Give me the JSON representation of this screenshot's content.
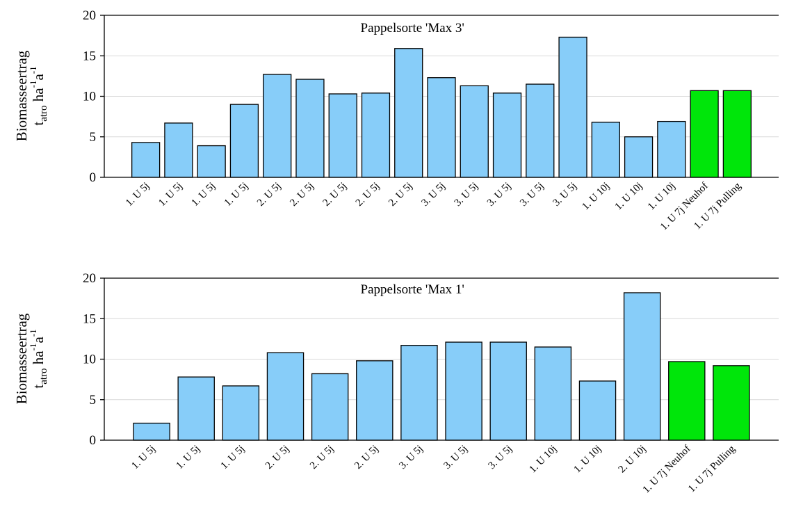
{
  "colors": {
    "standard": "#87cdf9",
    "highlight": "#00e60a",
    "stroke": "#000000",
    "grid": "#d9d9d9"
  },
  "chart_data": [
    {
      "type": "bar",
      "title": "Pappelsorte 'Max 3'",
      "ylabel": "Biomasseertrag",
      "ylabel_line2": {
        "t": "t",
        "sub": "atro",
        "ha": " ha",
        "sup1": "-1",
        "a": "a",
        "sup2": "-1"
      },
      "ylim": [
        0,
        20
      ],
      "yticks": [
        0,
        5,
        10,
        15,
        20
      ],
      "grid": true,
      "categories": [
        "1. U 5j",
        "1. U 5j",
        "1. U 5j",
        "1. U 5j",
        "2. U 5j",
        "2. U 5j",
        "2. U 5j",
        "2. U 5j",
        "2. U 5j",
        "3. U 5j",
        "3. U 5j",
        "3. U 5j",
        "3. U 5j",
        "3. U 5j",
        "1. U 10j",
        "1. U 10j",
        "1. U 10j",
        "1. U 7j Neuhof",
        "1. U 7j Pulling"
      ],
      "values": [
        4.3,
        6.7,
        3.9,
        9.0,
        12.7,
        12.1,
        10.3,
        10.4,
        15.9,
        12.3,
        11.3,
        10.4,
        11.5,
        17.3,
        6.8,
        5.0,
        6.9,
        10.7,
        10.7
      ],
      "highlight": [
        false,
        false,
        false,
        false,
        false,
        false,
        false,
        false,
        false,
        false,
        false,
        false,
        false,
        false,
        false,
        false,
        false,
        true,
        true
      ]
    },
    {
      "type": "bar",
      "title": "Pappelsorte 'Max 1'",
      "ylabel": "Biomasseertrag",
      "ylabel_line2": {
        "t": "t",
        "sub": "atro",
        "ha": " ha",
        "sup1": "-1",
        "a": "a",
        "sup2": "-1"
      },
      "ylim": [
        0,
        20
      ],
      "yticks": [
        0,
        5,
        10,
        15,
        20
      ],
      "grid": true,
      "categories": [
        "1. U 5j",
        "1. U 5j",
        "1. U 5j",
        "2. U 5j",
        "2. U 5j",
        "2. U 5j",
        "3. U 5j",
        "3. U 5j",
        "3. U 5j",
        "1. U 10j",
        "1. U 10j",
        "2. U 10j",
        "1. U 7j Neuhof",
        "1. U 7j Pulling"
      ],
      "values": [
        2.1,
        7.8,
        6.7,
        10.8,
        8.2,
        9.8,
        11.7,
        12.1,
        12.1,
        11.5,
        7.3,
        18.2,
        9.7,
        9.2
      ],
      "highlight": [
        false,
        false,
        false,
        false,
        false,
        false,
        false,
        false,
        false,
        false,
        false,
        false,
        true,
        true
      ]
    }
  ]
}
